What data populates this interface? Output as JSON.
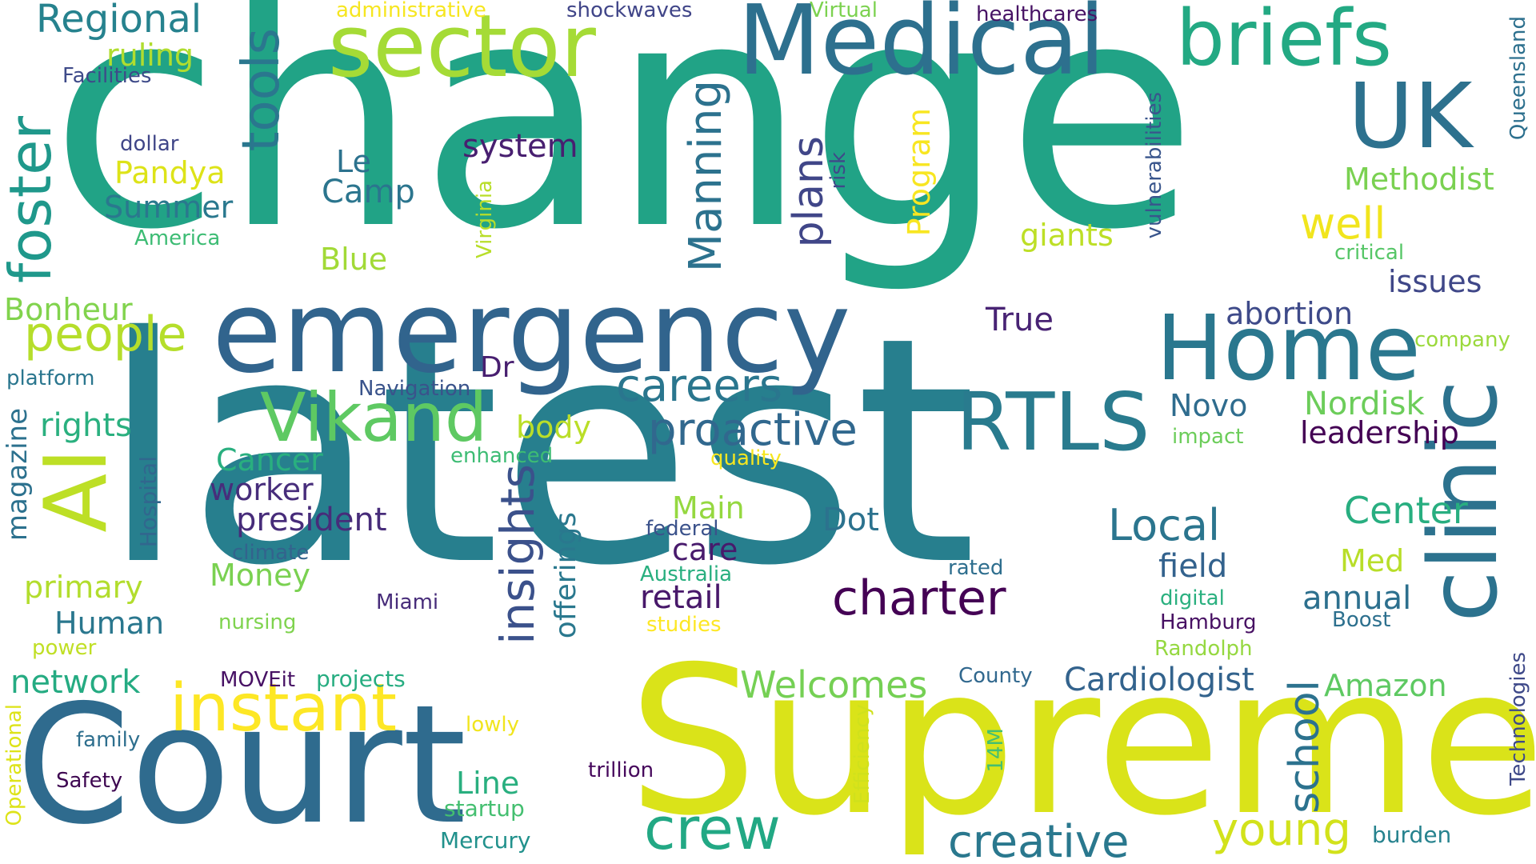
{
  "words": [
    {
      "text": "change",
      "color": "#21a386"
    },
    {
      "text": "latest",
      "color": "#277f8e"
    },
    {
      "text": "Supreme",
      "color": "#dae319"
    },
    {
      "text": "Court",
      "color": "#2f6b8e"
    },
    {
      "text": "emergency",
      "color": "#31648d"
    },
    {
      "text": "clinic",
      "color": "#2c728e"
    },
    {
      "text": "Medical",
      "color": "#2d708e"
    },
    {
      "text": "sector",
      "color": "#a5db36"
    },
    {
      "text": "briefs",
      "color": "#23a983"
    },
    {
      "text": "UK",
      "color": "#2d718e"
    },
    {
      "text": "Home",
      "color": "#2a778e"
    },
    {
      "text": "RTLS",
      "color": "#297b8e"
    },
    {
      "text": "AI",
      "color": "#bddf26"
    },
    {
      "text": "Vikand",
      "color": "#5ec962"
    },
    {
      "text": "instant",
      "color": "#fde725"
    },
    {
      "text": "crew",
      "color": "#22a884"
    },
    {
      "text": "creative",
      "color": "#2a788e"
    },
    {
      "text": "young",
      "color": "#d2e21b"
    },
    {
      "text": "charter",
      "color": "#440154"
    },
    {
      "text": "proactive",
      "color": "#31688e"
    },
    {
      "text": "careers",
      "color": "#2a768e"
    },
    {
      "text": "insights",
      "color": "#3b518b"
    },
    {
      "text": "Manning",
      "color": "#2c728e"
    },
    {
      "text": "plans",
      "color": "#404688"
    },
    {
      "text": "foster",
      "color": "#1f988b"
    },
    {
      "text": "tools",
      "color": "#2a778e"
    },
    {
      "text": "people",
      "color": "#b5de2b"
    },
    {
      "text": "Regional",
      "color": "#26828e"
    },
    {
      "text": "school",
      "color": "#2c728e"
    },
    {
      "text": "Local",
      "color": "#2b758e"
    },
    {
      "text": "Welcomes",
      "color": "#75d054"
    },
    {
      "text": "Cardiologist",
      "color": "#33638d"
    },
    {
      "text": "well",
      "color": "#f1e51d"
    },
    {
      "text": "Center",
      "color": "#28ae80"
    },
    {
      "text": "Methodist",
      "color": "#7ad151"
    },
    {
      "text": "system",
      "color": "#481f70"
    },
    {
      "text": "offerings",
      "color": "#2a788e"
    },
    {
      "text": "president",
      "color": "#472c7a"
    },
    {
      "text": "Dot",
      "color": "#2c728e"
    },
    {
      "text": "True",
      "color": "#482374"
    },
    {
      "text": "abortion",
      "color": "#3e4a89"
    },
    {
      "text": "issues",
      "color": "#3f4788"
    },
    {
      "text": "Nordisk",
      "color": "#6ccd5a"
    },
    {
      "text": "leadership",
      "color": "#440154"
    },
    {
      "text": "Novo",
      "color": "#2f6c8e"
    },
    {
      "text": "Dr",
      "color": "#481f70"
    },
    {
      "text": "body",
      "color": "#bade28"
    },
    {
      "text": "Cancer",
      "color": "#29af7f"
    },
    {
      "text": "worker",
      "color": "#472d7b"
    },
    {
      "text": "rights",
      "color": "#2ab07f"
    },
    {
      "text": "Main",
      "color": "#95d840"
    },
    {
      "text": "care",
      "color": "#481a6c"
    },
    {
      "text": "retail",
      "color": "#48186a"
    },
    {
      "text": "field",
      "color": "#33628d"
    },
    {
      "text": "annual",
      "color": "#2d708e"
    },
    {
      "text": "Med",
      "color": "#b8de29"
    },
    {
      "text": "Money",
      "color": "#7ad151"
    },
    {
      "text": "primary",
      "color": "#b2dd2d"
    },
    {
      "text": "Human",
      "color": "#2a778e"
    },
    {
      "text": "network",
      "color": "#25ab82"
    },
    {
      "text": "projects",
      "color": "#27ad81"
    },
    {
      "text": "Amazon",
      "color": "#5ec962"
    },
    {
      "text": "Line",
      "color": "#29af7f"
    },
    {
      "text": "startup",
      "color": "#44bf70"
    },
    {
      "text": "Mercury",
      "color": "#21918c"
    },
    {
      "text": "burden",
      "color": "#26828e"
    },
    {
      "text": "Summer",
      "color": "#2a788e"
    },
    {
      "text": "Pandya",
      "color": "#dde318"
    },
    {
      "text": "Le",
      "color": "#2c728e"
    },
    {
      "text": "Camp",
      "color": "#2b758e"
    },
    {
      "text": "Blue",
      "color": "#a2da37"
    },
    {
      "text": "Bonheur",
      "color": "#81d34d"
    },
    {
      "text": "ruling",
      "color": "#b0dd2f"
    },
    {
      "text": "giants",
      "color": "#bddf26"
    },
    {
      "text": "Program",
      "color": "#f8e621"
    },
    {
      "text": "magazine",
      "color": "#2c718e"
    },
    {
      "text": "Hospital",
      "color": "#31678e"
    },
    {
      "text": "Virginia",
      "color": "#b8de29"
    },
    {
      "text": "vulnerabilities",
      "color": "#39558c"
    },
    {
      "text": "Queensland",
      "color": "#2d708e"
    },
    {
      "text": "Technologies",
      "color": "#3e4989"
    },
    {
      "text": "Operational",
      "color": "#dde318"
    },
    {
      "text": "Efficiency",
      "color": "#d0e11c"
    },
    {
      "text": "14M",
      "color": "#44bf70"
    },
    {
      "text": "risk",
      "color": "#3f4889"
    },
    {
      "text": "administrative",
      "color": "#f6e620"
    },
    {
      "text": "shockwaves",
      "color": "#404588"
    },
    {
      "text": "Virtual",
      "color": "#7cd250"
    },
    {
      "text": "healthcares",
      "color": "#471365"
    },
    {
      "text": "Facilities",
      "color": "#3e4a89"
    },
    {
      "text": "dollar",
      "color": "#404688"
    },
    {
      "text": "America",
      "color": "#3dbc74"
    },
    {
      "text": "platform",
      "color": "#2a768e"
    },
    {
      "text": "Navigation",
      "color": "#3a538b"
    },
    {
      "text": "enhanced",
      "color": "#3dbc74"
    },
    {
      "text": "quality",
      "color": "#f6e620"
    },
    {
      "text": "impact",
      "color": "#6ccd5a"
    },
    {
      "text": "company",
      "color": "#9bd93c"
    },
    {
      "text": "critical",
      "color": "#56c667"
    },
    {
      "text": "federal",
      "color": "#3b528b"
    },
    {
      "text": "climate",
      "color": "#33638d"
    },
    {
      "text": "Australia",
      "color": "#29af7f"
    },
    {
      "text": "rated",
      "color": "#2e6e8e"
    },
    {
      "text": "digital",
      "color": "#2ab07f"
    },
    {
      "text": "nursing",
      "color": "#7fd34e"
    },
    {
      "text": "Miami",
      "color": "#472c7a"
    },
    {
      "text": "studies",
      "color": "#fde725"
    },
    {
      "text": "Hamburg",
      "color": "#471063"
    },
    {
      "text": "Boost",
      "color": "#2d708e"
    },
    {
      "text": "power",
      "color": "#c0df25"
    },
    {
      "text": "Randolph",
      "color": "#95d840"
    },
    {
      "text": "MOVEit",
      "color": "#471164"
    },
    {
      "text": "County",
      "color": "#31688e"
    },
    {
      "text": "lowly",
      "color": "#f1e51d"
    },
    {
      "text": "family",
      "color": "#2e6f8e"
    },
    {
      "text": "Safety",
      "color": "#3e0751"
    },
    {
      "text": "trillion",
      "color": "#46085c"
    }
  ]
}
